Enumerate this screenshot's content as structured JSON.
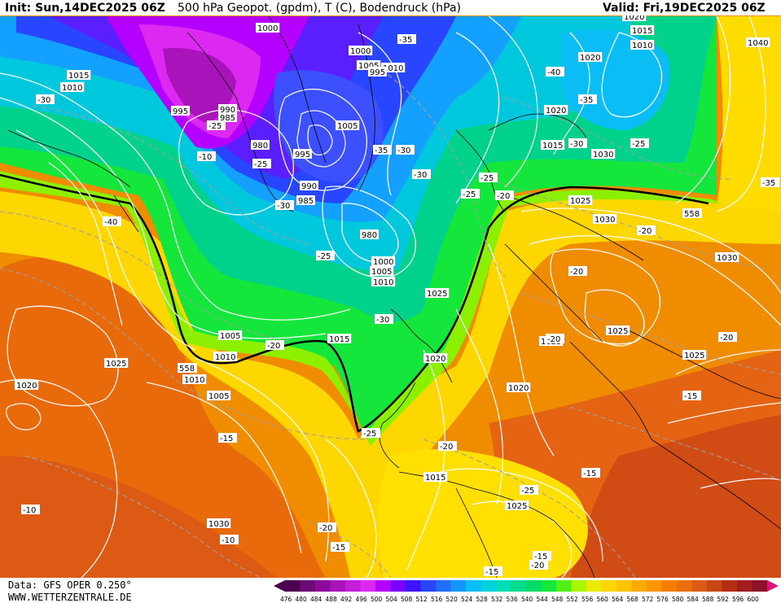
{
  "header": {
    "init": "Init: Sun,14DEC2025 06Z",
    "title": "500 hPa Geopot. (gpdm), T (C), Bodendruck (hPa)",
    "valid": "Valid: Fri,19DEC2025 06Z"
  },
  "footer": {
    "data_source": "Data: GFS OPER 0.250°",
    "website": "WWW.WETTERZENTRALE.DE"
  },
  "color_scale": {
    "ticks": [
      "476",
      "480",
      "484",
      "488",
      "492",
      "496",
      "500",
      "504",
      "508",
      "512",
      "516",
      "520",
      "524",
      "528",
      "532",
      "536",
      "540",
      "544",
      "548",
      "552",
      "556",
      "560",
      "564",
      "568",
      "572",
      "576",
      "580",
      "584",
      "588",
      "592",
      "596",
      "600"
    ],
    "colors": [
      "#4b0050",
      "#6e0a78",
      "#8c0a9b",
      "#a814b9",
      "#c31ed7",
      "#dc28f0",
      "#b400ff",
      "#7800ff",
      "#3c14ff",
      "#2846ff",
      "#1e6eff",
      "#1496ff",
      "#0abef5",
      "#00d2dc",
      "#00dcb4",
      "#00dc8c",
      "#00dc64",
      "#14e63c",
      "#50f014",
      "#aaf500",
      "#ebeb00",
      "#ffd700",
      "#ffc300",
      "#ffaa00",
      "#ff9600",
      "#f57d00",
      "#eb6e0a",
      "#dc5a14",
      "#c84614",
      "#b42d14",
      "#a01e1e",
      "#8c1428"
    ]
  },
  "isobar_labels": [
    "1000",
    "1015",
    "1010",
    "995",
    "990",
    "985",
    "980",
    "1000",
    "1005",
    "1010",
    "995",
    "1005",
    "1020",
    "1015",
    "1010",
    "1020",
    "1040",
    "1020",
    "1015",
    "1030",
    "1030",
    "1025",
    "1030",
    "1030",
    "1025",
    "1025",
    "1020",
    "1015",
    "1015",
    "1025",
    "1030",
    "1020",
    "1025",
    "1005",
    "1010",
    "1010",
    "1005",
    "995",
    "990",
    "985",
    "980",
    "1000",
    "1005",
    "1010",
    "1015",
    "1025",
    "1020",
    "1025"
  ],
  "temperature_labels": [
    "-35",
    "-40",
    "-35",
    "-30",
    "-25",
    "-25",
    "-25",
    "-30",
    "-35",
    "-30",
    "-25",
    "-20",
    "-20",
    "-30",
    "-25",
    "-20",
    "-20",
    "-20",
    "-20",
    "-15",
    "-15",
    "-15",
    "-20",
    "-20",
    "-25",
    "-15",
    "-10",
    "-10",
    "-15",
    "-20",
    "-15",
    "-10",
    "-25",
    "-40",
    "-35",
    "-30",
    "-30",
    "-25"
  ],
  "contour_558_label": "558"
}
